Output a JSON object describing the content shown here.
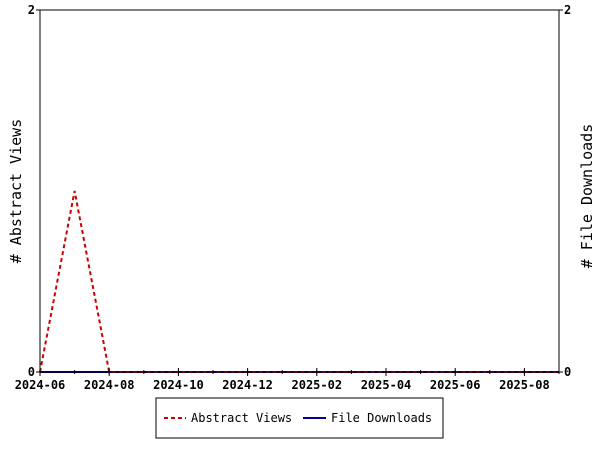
{
  "chart_data": {
    "type": "line",
    "title": "",
    "x_ticks": [
      "2024-06",
      "2024-08",
      "2024-10",
      "2024-12",
      "2025-02",
      "2025-04",
      "2025-06",
      "2025-08"
    ],
    "x_range": [
      "2024-06",
      "2025-09"
    ],
    "y_left": {
      "label": "# Abstract Views",
      "range": [
        0,
        2
      ],
      "ticks": [
        "0",
        "2"
      ]
    },
    "y_right": {
      "label": "# File Downloads",
      "range": [
        0,
        2
      ],
      "ticks": [
        "0",
        "2"
      ]
    },
    "grid": false,
    "legend": "bottom",
    "series": [
      {
        "name": "Abstract Views",
        "axis": "left",
        "color": "#cc0000",
        "style": "dashed",
        "points": [
          {
            "x": "2024-06",
            "y": 0
          },
          {
            "x": "2024-07",
            "y": 1
          },
          {
            "x": "2024-08",
            "y": 0
          },
          {
            "x": "2024-09",
            "y": 0
          },
          {
            "x": "2024-10",
            "y": 0
          },
          {
            "x": "2024-11",
            "y": 0
          },
          {
            "x": "2024-12",
            "y": 0
          },
          {
            "x": "2025-01",
            "y": 0
          },
          {
            "x": "2025-02",
            "y": 0
          },
          {
            "x": "2025-03",
            "y": 0
          },
          {
            "x": "2025-04",
            "y": 0
          },
          {
            "x": "2025-05",
            "y": 0
          },
          {
            "x": "2025-06",
            "y": 0
          },
          {
            "x": "2025-07",
            "y": 0
          },
          {
            "x": "2025-08",
            "y": 0
          },
          {
            "x": "2025-09",
            "y": 0
          }
        ]
      },
      {
        "name": "File Downloads",
        "axis": "right",
        "color": "#000099",
        "style": "solid",
        "points": [
          {
            "x": "2024-06",
            "y": 0
          },
          {
            "x": "2024-07",
            "y": 0
          },
          {
            "x": "2024-08",
            "y": 0
          },
          {
            "x": "2024-09",
            "y": 0
          },
          {
            "x": "2024-10",
            "y": 0
          },
          {
            "x": "2024-11",
            "y": 0
          },
          {
            "x": "2024-12",
            "y": 0
          },
          {
            "x": "2025-01",
            "y": 0
          },
          {
            "x": "2025-02",
            "y": 0
          },
          {
            "x": "2025-03",
            "y": 0
          },
          {
            "x": "2025-04",
            "y": 0
          },
          {
            "x": "2025-05",
            "y": 0
          },
          {
            "x": "2025-06",
            "y": 0
          },
          {
            "x": "2025-07",
            "y": 0
          },
          {
            "x": "2025-08",
            "y": 0
          },
          {
            "x": "2025-09",
            "y": 0
          }
        ]
      }
    ]
  }
}
